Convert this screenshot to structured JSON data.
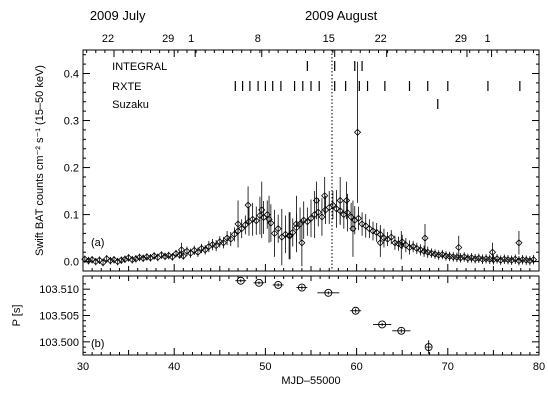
{
  "chart_data": [
    {
      "panel": "(a)",
      "type": "scatter",
      "ylabel": "Swift BAT counts cm⁻² s⁻¹ (15–50 keV)",
      "ylim": [
        -0.02,
        0.45
      ],
      "xlim": [
        30,
        80
      ],
      "yticks": [
        0.0,
        0.1,
        0.2,
        0.3,
        0.4
      ],
      "ytick_labels": [
        "0.0",
        "0.1",
        "0.2",
        "0.3",
        "0.4"
      ],
      "top_axis": {
        "month_labels": [
          {
            "x": 33.8,
            "label": "2009 July"
          },
          {
            "x": 58.3,
            "label": "2009 August"
          }
        ],
        "day_ticks": [
          {
            "x": 33.4,
            "label": "22"
          },
          {
            "x": 40.0,
            "label": "29"
          },
          {
            "x": 42.3,
            "label": "1"
          },
          {
            "x": 49.6,
            "label": "8"
          },
          {
            "x": 57.6,
            "label": "15"
          },
          {
            "x": 63.3,
            "label": "22"
          },
          {
            "x": 72.1,
            "label": "29"
          },
          {
            "x": 74.8,
            "label": "1"
          }
        ]
      },
      "dotted_line_x": 57.3,
      "observations": [
        {
          "name": "INTEGRAL",
          "times": [
            54.6,
            57.6,
            59.8,
            60.6
          ]
        },
        {
          "name": "RXTE",
          "times": [
            46.7,
            47.5,
            48.3,
            49.2,
            50.0,
            50.8,
            51.7,
            53.2,
            54.1,
            55.0,
            55.9,
            57.6,
            58.8,
            60.3,
            61.2,
            63.1,
            65.8,
            67.8,
            70.0,
            74.4,
            77.9
          ]
        },
        {
          "name": "Suzaku",
          "times": [
            68.9
          ]
        }
      ],
      "series": [
        {
          "x": [
            30.2,
            30.6,
            31.0,
            31.4,
            31.8,
            32.2,
            32.6,
            33.0,
            33.4,
            33.8,
            34.2,
            34.6,
            35.0,
            35.4,
            35.8,
            36.2,
            36.6,
            37.0,
            37.4,
            37.8,
            38.2,
            38.6,
            39.0,
            39.4,
            39.8,
            40.2,
            40.6,
            41.0,
            41.4,
            41.8,
            42.2,
            42.6,
            43.0,
            43.4,
            43.8,
            44.2,
            44.6,
            45.0,
            45.4,
            45.8,
            46.2,
            46.6,
            47.0,
            47.4,
            47.8,
            48.2,
            48.6,
            49.0,
            49.4,
            49.8,
            50.2,
            50.6,
            51.0,
            51.4,
            51.8,
            52.2,
            52.6,
            53.0,
            53.4,
            53.8,
            54.2,
            54.6,
            55.0,
            55.4,
            55.8,
            56.2,
            56.6,
            57.0,
            57.4,
            57.8,
            58.2,
            58.6,
            59.0,
            59.4,
            59.8,
            60.2,
            60.6,
            61.0,
            61.4,
            61.8,
            62.2,
            62.6,
            63.0,
            63.4,
            63.8,
            64.2,
            64.6,
            65.0,
            65.4,
            65.8,
            66.2,
            66.6,
            67.0,
            67.4,
            67.8,
            68.2,
            68.6,
            69.0,
            69.4,
            69.8,
            70.2,
            70.6,
            71.0,
            71.4,
            71.8,
            72.2,
            72.6,
            73.0,
            73.4,
            73.8,
            74.2,
            74.6,
            75.0,
            75.4,
            75.8,
            76.2,
            76.6,
            77.0,
            77.4,
            77.8,
            78.2,
            78.6,
            79.0,
            79.4
          ],
          "y": [
            0.005,
            0.002,
            0.004,
            0.0,
            0.003,
            -0.002,
            0.006,
            0.002,
            0.004,
            0.0,
            0.003,
            0.005,
            0.008,
            0.004,
            0.006,
            0.009,
            0.007,
            0.01,
            0.008,
            0.012,
            0.009,
            0.014,
            0.011,
            0.013,
            0.01,
            0.017,
            0.014,
            0.012,
            0.022,
            0.018,
            0.024,
            0.02,
            0.028,
            0.025,
            0.032,
            0.036,
            0.034,
            0.042,
            0.04,
            0.05,
            0.048,
            0.058,
            0.065,
            0.07,
            0.078,
            0.085,
            0.09,
            0.087,
            0.098,
            0.094,
            0.1,
            0.082,
            0.06,
            0.07,
            0.052,
            0.058,
            0.055,
            0.062,
            0.072,
            0.08,
            0.088,
            0.085,
            0.092,
            0.1,
            0.105,
            0.095,
            0.11,
            0.115,
            0.12,
            0.112,
            0.108,
            0.1,
            0.104,
            0.095,
            0.088,
            0.092,
            0.08,
            0.076,
            0.07,
            0.065,
            0.062,
            0.058,
            0.05,
            0.048,
            0.052,
            0.04,
            0.038,
            0.042,
            0.035,
            0.03,
            0.032,
            0.028,
            0.025,
            0.022,
            0.02,
            0.018,
            0.016,
            0.014,
            0.015,
            0.012,
            0.011,
            0.01,
            0.009,
            0.008,
            0.01,
            0.007,
            0.008,
            0.006,
            0.007,
            0.005,
            0.006,
            0.005,
            0.004,
            0.006,
            0.003,
            0.005,
            0.004,
            0.003,
            0.005,
            0.002,
            0.004,
            0.003,
            0.002,
            0.004
          ],
          "yerr": [
            0.008,
            0.008,
            0.008,
            0.008,
            0.008,
            0.008,
            0.008,
            0.008,
            0.008,
            0.008,
            0.008,
            0.008,
            0.008,
            0.008,
            0.008,
            0.008,
            0.008,
            0.008,
            0.008,
            0.008,
            0.008,
            0.008,
            0.008,
            0.008,
            0.008,
            0.008,
            0.008,
            0.008,
            0.01,
            0.01,
            0.01,
            0.01,
            0.01,
            0.01,
            0.012,
            0.012,
            0.012,
            0.012,
            0.012,
            0.015,
            0.015,
            0.015,
            0.02,
            0.02,
            0.02,
            0.03,
            0.035,
            0.03,
            0.04,
            0.035,
            0.03,
            0.04,
            0.05,
            0.03,
            0.06,
            0.04,
            0.05,
            0.03,
            0.03,
            0.035,
            0.04,
            0.03,
            0.04,
            0.05,
            0.03,
            0.04,
            0.03,
            0.035,
            0.03,
            0.04,
            0.03,
            0.03,
            0.04,
            0.03,
            0.03,
            0.025,
            0.025,
            0.025,
            0.02,
            0.02,
            0.02,
            0.02,
            0.02,
            0.015,
            0.015,
            0.015,
            0.015,
            0.015,
            0.015,
            0.015,
            0.012,
            0.012,
            0.012,
            0.012,
            0.012,
            0.01,
            0.01,
            0.01,
            0.01,
            0.01,
            0.01,
            0.01,
            0.01,
            0.01,
            0.01,
            0.01,
            0.01,
            0.01,
            0.01,
            0.01,
            0.01,
            0.01,
            0.01,
            0.01,
            0.01,
            0.01,
            0.01,
            0.01,
            0.01,
            0.01,
            0.01,
            0.01,
            0.01,
            0.01
          ]
        },
        {
          "x": [
            40.8,
            47.0,
            48.1,
            49.6,
            50.4,
            52.7,
            53.4,
            54.0,
            55.6,
            56.5,
            58.2,
            58.9,
            59.6,
            60.1,
            62.6,
            64.9,
            67.5,
            71.2,
            74.9,
            77.8
          ],
          "y": [
            0.025,
            0.08,
            0.12,
            0.11,
            0.09,
            0.055,
            0.08,
            0.04,
            0.13,
            0.14,
            0.13,
            0.13,
            0.07,
            0.275,
            0.04,
            0.035,
            0.05,
            0.03,
            0.02,
            0.04
          ],
          "yerr": [
            0.015,
            0.05,
            0.04,
            0.06,
            0.05,
            0.05,
            0.06,
            0.05,
            0.04,
            0.04,
            0.05,
            0.04,
            0.06,
            0.15,
            0.03,
            0.03,
            0.03,
            0.025,
            0.02,
            0.025
          ]
        }
      ]
    },
    {
      "panel": "(b)",
      "type": "scatter",
      "xlabel": "MJD–55000",
      "ylabel": "P [s]",
      "xlim": [
        30,
        80
      ],
      "ylim": [
        103.4975,
        103.5125
      ],
      "xticks": [
        30,
        40,
        50,
        60,
        70,
        80
      ],
      "xtick_labels": [
        "30",
        "40",
        "50",
        "60",
        "70",
        "80"
      ],
      "yticks": [
        103.5,
        103.505,
        103.51
      ],
      "ytick_labels": [
        "103.500",
        "103.505",
        "103.510"
      ],
      "series": [
        {
          "x": [
            47.3,
            49.3,
            51.4,
            54.0,
            56.9,
            59.9,
            62.8,
            64.9,
            67.9
          ],
          "y": [
            103.5116,
            103.5112,
            103.5108,
            103.5103,
            103.5093,
            103.5059,
            103.5033,
            103.5021,
            103.499
          ],
          "xerr": [
            0.6,
            0.6,
            0.6,
            0.6,
            1.2,
            0.6,
            1.0,
            1.0,
            0.3
          ],
          "yerr": [
            0.0003,
            0.0003,
            0.0003,
            0.0004,
            0.0003,
            0.0004,
            0.0003,
            0.0004,
            0.0013
          ]
        }
      ]
    }
  ]
}
